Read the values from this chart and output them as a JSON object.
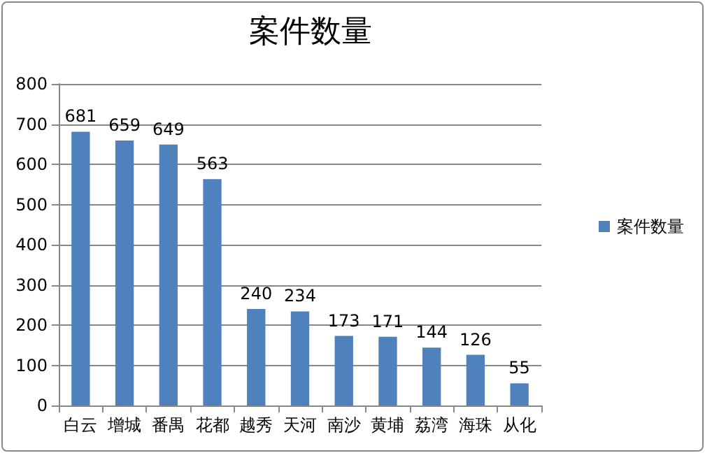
{
  "chart_data": {
    "type": "bar",
    "title": "案件数量",
    "categories": [
      "白云",
      "增城",
      "番禺",
      "花都",
      "越秀",
      "天河",
      "南沙",
      "黄埔",
      "荔湾",
      "海珠",
      "从化"
    ],
    "series": [
      {
        "name": "案件数量",
        "color": "#4f81bd",
        "values": [
          681,
          659,
          649,
          563,
          240,
          234,
          173,
          171,
          144,
          126,
          55
        ]
      }
    ],
    "ylim": [
      0,
      800
    ],
    "yticks": [
      0,
      100,
      200,
      300,
      400,
      500,
      600,
      700,
      800
    ],
    "grid": "y",
    "legend": "right",
    "data_labels": true
  }
}
